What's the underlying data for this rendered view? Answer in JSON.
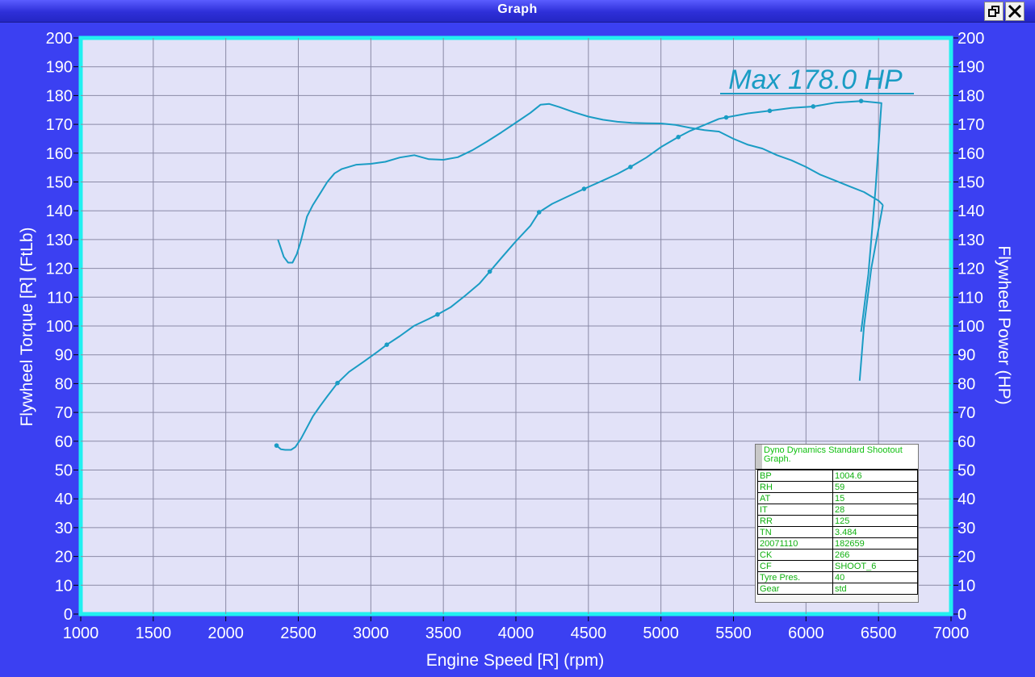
{
  "window": {
    "title": "Graph"
  },
  "chart_data": {
    "type": "line",
    "title": "",
    "annotation": "Max 178.0 HP",
    "xlabel": "Engine Speed [R] (rpm)",
    "ylabel_left": "Flywheel Torque [R] (FtLb)",
    "ylabel_right": "Flywheel Power (HP)",
    "xlim": [
      1000,
      7000
    ],
    "ylim": [
      0,
      200
    ],
    "xticks": [
      1000,
      1500,
      2000,
      2500,
      3000,
      3500,
      4000,
      4500,
      5000,
      5500,
      6000,
      6500,
      7000
    ],
    "yticks": [
      0,
      10,
      20,
      30,
      40,
      50,
      60,
      70,
      80,
      90,
      100,
      110,
      120,
      130,
      140,
      150,
      160,
      170,
      180,
      190,
      200
    ],
    "grid": true,
    "colors": {
      "plot_bg": "#e2e2f8",
      "plot_border": "#22f0f0",
      "series": "#1a9cc4",
      "grid": "#8a8aa6",
      "frame_bg": "#3b40f2"
    },
    "series": [
      {
        "name": "",
        "axis": "left",
        "x": [
          2360,
          2380,
          2400,
          2430,
          2460,
          2490,
          2520,
          2560,
          2600,
          2650,
          2700,
          2750,
          2800,
          2900,
          3000,
          3100,
          3200,
          3300,
          3400,
          3500,
          3600,
          3700,
          3800,
          3900,
          4000,
          4100,
          4170,
          4230,
          4300,
          4400,
          4500,
          4600,
          4700,
          4800,
          4900,
          5000,
          5100,
          5200,
          5300,
          5400,
          5500,
          5600,
          5700,
          5800,
          5900,
          6000,
          6100,
          6200,
          6300,
          6400,
          6450,
          6500,
          6530
        ],
        "y": [
          130,
          127,
          124,
          122,
          122,
          125,
          130,
          138,
          142,
          146,
          150,
          153,
          154.5,
          156,
          156.3,
          157,
          158.5,
          159.3,
          157.9,
          157.7,
          158.6,
          161,
          164,
          167.2,
          170.6,
          174,
          176.8,
          177.1,
          176,
          174.2,
          172.7,
          171.6,
          170.9,
          170.5,
          170.4,
          170.3,
          169.8,
          168.8,
          168,
          167.5,
          165,
          162.9,
          161.6,
          159.3,
          157.5,
          155.2,
          152.5,
          150.5,
          148.5,
          146.5,
          145,
          143.5,
          142
        ]
      },
      {
        "name": "",
        "axis": "right",
        "x": [
          2350,
          2380,
          2410,
          2450,
          2480,
          2520,
          2560,
          2600,
          2650,
          2700,
          2770,
          2850,
          2950,
          3050,
          3110,
          3200,
          3300,
          3400,
          3460,
          3550,
          3650,
          3750,
          3820,
          3900,
          4000,
          4100,
          4160,
          4250,
          4350,
          4470,
          4600,
          4700,
          4790,
          4900,
          5000,
          5120,
          5200,
          5300,
          5400,
          5450,
          5600,
          5750,
          5900,
          6050,
          6200,
          6380,
          6520,
          6480,
          6430,
          6380
        ],
        "y": [
          58.5,
          57.2,
          57,
          57,
          58,
          61,
          64.8,
          68.6,
          72.2,
          75.6,
          80.2,
          84.1,
          87.6,
          91.2,
          93.5,
          96.5,
          100.1,
          102.5,
          104,
          106.5,
          110.5,
          114.8,
          118.9,
          123.6,
          129.4,
          134.8,
          139.5,
          142.4,
          144.8,
          147.6,
          150.5,
          152.8,
          155.2,
          158.5,
          162.1,
          165.6,
          167.7,
          169.8,
          171.9,
          172.4,
          173.8,
          174.7,
          175.7,
          176.2,
          177.5,
          178.1,
          177.4,
          148,
          118,
          98
        ]
      },
      {
        "name": "",
        "axis": "right",
        "x": [
          6530,
          6450,
          6400,
          6370
        ],
        "y": [
          142,
          120,
          100,
          81
        ]
      }
    ],
    "markers": {
      "x": [
        2350,
        2770,
        3110,
        3460,
        3820,
        4160,
        4470,
        4790,
        5120,
        5450,
        5750,
        6050,
        6380
      ],
      "y": [
        58.5,
        80.2,
        93.5,
        104,
        118.9,
        139.5,
        147.6,
        155.2,
        165.6,
        172.4,
        174.7,
        176.2,
        178.1
      ]
    },
    "info_box": {
      "title": "Dyno Dynamics Standard Shootout Graph.",
      "rows": [
        [
          "BP",
          "1004.6"
        ],
        [
          "RH",
          "59"
        ],
        [
          "AT",
          "15"
        ],
        [
          "IT",
          "28"
        ],
        [
          "RR",
          "125"
        ],
        [
          "TN",
          "3.484"
        ],
        [
          "20071110",
          "182659"
        ],
        [
          "CK",
          "266"
        ],
        [
          "CF",
          "SHOOT_6"
        ],
        [
          "Tyre Pres.",
          "40"
        ],
        [
          "Gear",
          "std"
        ]
      ]
    }
  }
}
